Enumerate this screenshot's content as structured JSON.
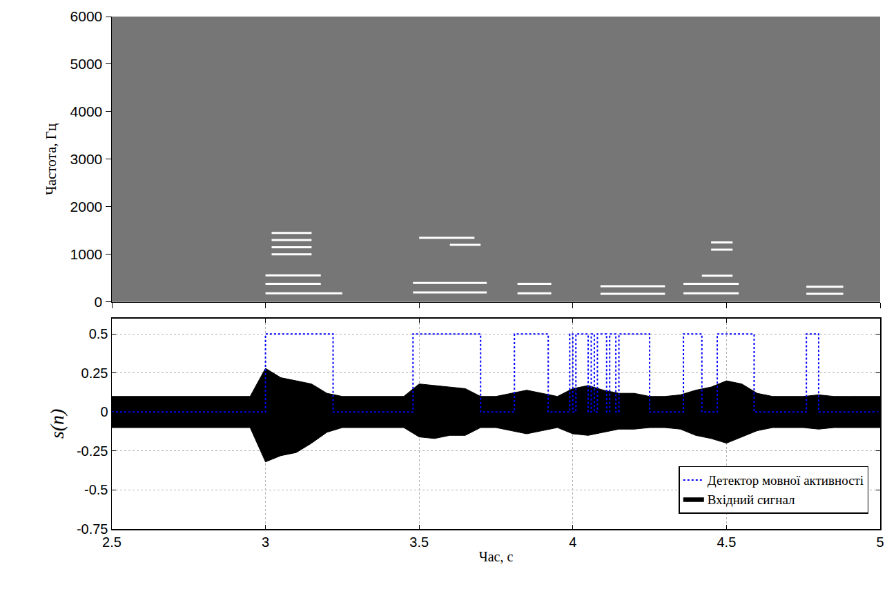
{
  "chart_data": [
    {
      "type": "spectrogram",
      "ylabel": "Частота, Гц",
      "xlim": [
        2.5,
        5
      ],
      "ylim": [
        0,
        6000
      ],
      "xticks": [
        2.5,
        3,
        3.5,
        4,
        4.5,
        5
      ],
      "yticks": [
        0,
        1000,
        2000,
        3000,
        4000,
        5000,
        6000
      ],
      "tick_labels": "y",
      "color": "#ffffff",
      "harmonics": [
        {
          "t": [
            3.0,
            3.25
          ],
          "f": 180
        },
        {
          "t": [
            3.0,
            3.18
          ],
          "f": 380
        },
        {
          "t": [
            3.0,
            3.18
          ],
          "f": 560
        },
        {
          "t": [
            3.02,
            3.15
          ],
          "f": 1000
        },
        {
          "t": [
            3.02,
            3.15
          ],
          "f": 1150
        },
        {
          "t": [
            3.02,
            3.15
          ],
          "f": 1300
        },
        {
          "t": [
            3.02,
            3.15
          ],
          "f": 1450
        },
        {
          "t": [
            3.48,
            3.72
          ],
          "f": 200
        },
        {
          "t": [
            3.48,
            3.72
          ],
          "f": 400
        },
        {
          "t": [
            3.5,
            3.68
          ],
          "f": 1350
        },
        {
          "t": [
            3.6,
            3.7
          ],
          "f": 1200
        },
        {
          "t": [
            3.82,
            3.93
          ],
          "f": 180
        },
        {
          "t": [
            3.82,
            3.93
          ],
          "f": 380
        },
        {
          "t": [
            4.09,
            4.3
          ],
          "f": 170
        },
        {
          "t": [
            4.09,
            4.3
          ],
          "f": 330
        },
        {
          "t": [
            4.36,
            4.54
          ],
          "f": 180
        },
        {
          "t": [
            4.36,
            4.54
          ],
          "f": 380
        },
        {
          "t": [
            4.42,
            4.52
          ],
          "f": 550
        },
        {
          "t": [
            4.45,
            4.52
          ],
          "f": 1100
        },
        {
          "t": [
            4.45,
            4.52
          ],
          "f": 1250
        },
        {
          "t": [
            4.76,
            4.88
          ],
          "f": 170
        },
        {
          "t": [
            4.76,
            4.88
          ],
          "f": 320
        }
      ]
    },
    {
      "type": "line",
      "xlabel": "Час, с",
      "ylabel": "s(n)",
      "xlim": [
        2.5,
        5
      ],
      "ylim": [
        -0.75,
        0.6
      ],
      "xticks": [
        2.5,
        3,
        3.5,
        4,
        4.5,
        5
      ],
      "yticks": [
        -0.75,
        -0.5,
        -0.25,
        0,
        0.25,
        0.5
      ],
      "grid": true,
      "legend": "lower right",
      "series": [
        {
          "name": "Вхідний сигнал",
          "type": "envelope",
          "color": "#000000",
          "x": [
            2.5,
            2.55,
            2.6,
            2.65,
            2.7,
            2.75,
            2.8,
            2.85,
            2.9,
            2.95,
            3.0,
            3.05,
            3.1,
            3.15,
            3.2,
            3.25,
            3.3,
            3.35,
            3.4,
            3.45,
            3.5,
            3.55,
            3.6,
            3.65,
            3.7,
            3.75,
            3.8,
            3.85,
            3.9,
            3.95,
            4.0,
            4.05,
            4.1,
            4.15,
            4.2,
            4.25,
            4.3,
            4.35,
            4.4,
            4.45,
            4.5,
            4.55,
            4.6,
            4.65,
            4.7,
            4.75,
            4.8,
            4.85,
            4.9,
            4.95,
            5.0
          ],
          "upper": [
            0.1,
            0.1,
            0.1,
            0.1,
            0.1,
            0.1,
            0.1,
            0.1,
            0.1,
            0.1,
            0.28,
            0.22,
            0.2,
            0.18,
            0.12,
            0.1,
            0.1,
            0.1,
            0.1,
            0.1,
            0.18,
            0.17,
            0.16,
            0.15,
            0.1,
            0.1,
            0.12,
            0.14,
            0.12,
            0.1,
            0.15,
            0.17,
            0.14,
            0.12,
            0.12,
            0.1,
            0.1,
            0.11,
            0.14,
            0.16,
            0.2,
            0.18,
            0.12,
            0.1,
            0.1,
            0.1,
            0.11,
            0.1,
            0.1,
            0.1,
            0.1
          ],
          "lower": [
            -0.1,
            -0.1,
            -0.1,
            -0.1,
            -0.1,
            -0.1,
            -0.1,
            -0.1,
            -0.1,
            -0.1,
            -0.32,
            -0.28,
            -0.26,
            -0.2,
            -0.13,
            -0.1,
            -0.1,
            -0.1,
            -0.1,
            -0.1,
            -0.16,
            -0.17,
            -0.15,
            -0.15,
            -0.1,
            -0.1,
            -0.12,
            -0.14,
            -0.12,
            -0.1,
            -0.14,
            -0.15,
            -0.13,
            -0.11,
            -0.11,
            -0.1,
            -0.1,
            -0.11,
            -0.15,
            -0.17,
            -0.2,
            -0.16,
            -0.12,
            -0.1,
            -0.1,
            -0.1,
            -0.11,
            -0.1,
            -0.1,
            -0.1,
            -0.1
          ]
        },
        {
          "name": "Детектор мовної активності",
          "type": "step",
          "color": "#0000ff",
          "line_style": "dot",
          "x": [
            2.5,
            3.0,
            3.22,
            3.48,
            3.7,
            3.81,
            3.92,
            3.99,
            4.0,
            4.01,
            4.05,
            4.06,
            4.07,
            4.08,
            4.11,
            4.12,
            4.14,
            4.15,
            4.25,
            4.36,
            4.42,
            4.47,
            4.59,
            4.76,
            4.8,
            5.0
          ],
          "values": [
            0,
            0.5,
            0,
            0.5,
            0,
            0.5,
            0,
            0.5,
            0,
            0.5,
            0,
            0.5,
            0,
            0.5,
            0,
            0.5,
            0,
            0.5,
            0,
            0.5,
            0,
            0.5,
            0,
            0.5,
            0,
            0
          ]
        }
      ]
    }
  ]
}
